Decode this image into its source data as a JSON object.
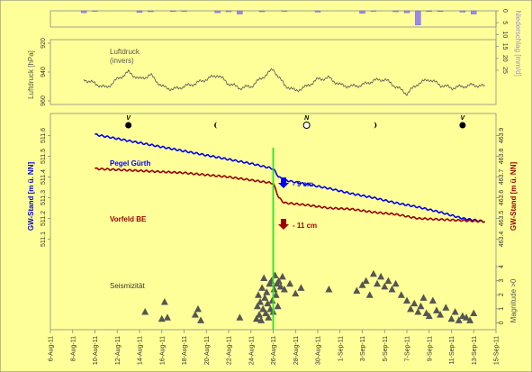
{
  "colors": {
    "background": "#ffff99",
    "frame": "#8a8a8a",
    "precip": "#9a8aea",
    "pressure": "#555555",
    "guerth": "#0000ee",
    "vorfeld": "#990000",
    "event": "#33dd33",
    "seis": "#555555"
  },
  "chart_data": [
    {
      "type": "bar",
      "name": "precipitation",
      "ylabel": "Niederschlag [mm/d]",
      "yticks": [
        "0",
        "5",
        "10",
        "15",
        "20",
        "25"
      ],
      "ylim": [
        0,
        25
      ],
      "inverted": true,
      "x": [
        "2011-08-09",
        "2011-08-10",
        "2011-08-14",
        "2011-08-15",
        "2011-08-17",
        "2011-08-18",
        "2011-08-21",
        "2011-08-22",
        "2011-08-23",
        "2011-08-25",
        "2011-08-27",
        "2011-08-30",
        "2011-09-03",
        "2011-09-04",
        "2011-09-06",
        "2011-09-07",
        "2011-09-08",
        "2011-09-09",
        "2011-09-10",
        "2011-09-12",
        "2011-09-13"
      ],
      "values": [
        3,
        0.5,
        2.5,
        1.5,
        1,
        0.7,
        3,
        1.5,
        5,
        1.5,
        0.5,
        2,
        4,
        0.5,
        1.5,
        3,
        22,
        1,
        1.2,
        2,
        5
      ]
    },
    {
      "type": "line",
      "name": "Luftdruck (invers)",
      "label": "Luftdruck\n(invers)",
      "ylabel": "Luftdruck [hPa]",
      "yticks": [
        "920",
        "940",
        "960"
      ],
      "note": "approximate trace",
      "x": [
        "2011-08-09",
        "2011-08-10",
        "2011-08-11",
        "2011-08-12",
        "2011-08-13",
        "2011-08-14",
        "2011-08-15",
        "2011-08-16",
        "2011-08-17",
        "2011-08-18",
        "2011-08-19",
        "2011-08-20",
        "2011-08-21",
        "2011-08-22",
        "2011-08-23",
        "2011-08-24",
        "2011-08-25",
        "2011-08-26",
        "2011-08-27",
        "2011-08-28",
        "2011-08-29",
        "2011-08-30",
        "2011-08-31",
        "2011-09-01",
        "2011-09-02",
        "2011-09-03",
        "2011-09-04",
        "2011-09-05",
        "2011-09-06",
        "2011-09-07",
        "2011-09-08",
        "2011-09-09",
        "2011-09-10",
        "2011-09-11",
        "2011-09-12",
        "2011-09-13",
        "2011-09-14"
      ],
      "values": [
        945,
        948,
        951,
        945,
        940,
        945,
        942,
        950,
        952,
        950,
        948,
        945,
        942,
        948,
        951,
        950,
        944,
        938,
        949,
        953,
        950,
        945,
        944,
        949,
        950,
        949,
        946,
        945,
        950,
        955,
        948,
        945,
        949,
        951,
        950,
        949,
        950
      ]
    },
    {
      "type": "line",
      "name": "Pegel Gürth",
      "ylabel": "GW-Stand  [m ü. NN]",
      "yticks": [
        "511.1",
        "511.2",
        "511.3",
        "511.4",
        "511.5",
        "511.6"
      ],
      "ylim": [
        511.05,
        511.65
      ],
      "x": [
        "2011-08-10",
        "2011-08-12",
        "2011-08-14",
        "2011-08-16",
        "2011-08-18",
        "2011-08-20",
        "2011-08-22",
        "2011-08-24",
        "2011-08-26",
        "2011-08-26T12",
        "2011-08-27",
        "2011-08-29",
        "2011-08-31",
        "2011-09-02",
        "2011-09-04",
        "2011-09-06",
        "2011-09-08",
        "2011-09-10",
        "2011-09-12",
        "2011-09-14"
      ],
      "values": [
        511.605,
        511.585,
        511.565,
        511.545,
        511.525,
        511.505,
        511.485,
        511.465,
        511.44,
        511.4,
        511.385,
        511.365,
        511.345,
        511.32,
        511.3,
        511.275,
        511.255,
        511.23,
        511.2,
        511.185
      ],
      "annotation": "- 9 cm"
    },
    {
      "type": "line",
      "name": "Vorfeld BE",
      "ylabel": "GW-Stand  [m ü. NN]",
      "yticks": [
        "463.4",
        "463.5",
        "463.6",
        "463.7",
        "463.8",
        "463.9"
      ],
      "ylim": [
        463.35,
        463.95
      ],
      "x": [
        "2011-08-10",
        "2011-08-12",
        "2011-08-14",
        "2011-08-16",
        "2011-08-18",
        "2011-08-20",
        "2011-08-22",
        "2011-08-24",
        "2011-08-26",
        "2011-08-26T12",
        "2011-08-27",
        "2011-08-29",
        "2011-08-31",
        "2011-09-02",
        "2011-09-04",
        "2011-09-06",
        "2011-09-08",
        "2011-09-10",
        "2011-09-12",
        "2011-09-14"
      ],
      "values": [
        463.74,
        463.735,
        463.73,
        463.725,
        463.72,
        463.71,
        463.7,
        463.685,
        463.67,
        463.6,
        463.575,
        463.565,
        463.55,
        463.545,
        463.53,
        463.52,
        463.5,
        463.495,
        463.49,
        463.485
      ],
      "annotation": "- 11 cm"
    },
    {
      "type": "scatter",
      "name": "Seismizität",
      "ylabel": "Magnitude >0",
      "yticks": [
        "0",
        "1",
        "2",
        "3",
        "4"
      ],
      "ylim": [
        -0.1,
        4
      ],
      "x": [
        "2011-08-14T12",
        "2011-08-16",
        "2011-08-16T06",
        "2011-08-16T12",
        "2011-08-19",
        "2011-08-19T06",
        "2011-08-19T12",
        "2011-08-23",
        "2011-08-24T12",
        "2011-08-24T14",
        "2011-08-24T16",
        "2011-08-24T18",
        "2011-08-24T20",
        "2011-08-24T22",
        "2011-08-25",
        "2011-08-25T02",
        "2011-08-25T04",
        "2011-08-25T06",
        "2011-08-25T08",
        "2011-08-25T10",
        "2011-08-25T12",
        "2011-08-25T14",
        "2011-08-25T16",
        "2011-08-25T18",
        "2011-08-25T20",
        "2011-08-25T22",
        "2011-08-26",
        "2011-08-26T02",
        "2011-08-26T04",
        "2011-08-26T06",
        "2011-08-26T08",
        "2011-08-26T10",
        "2011-08-26T12",
        "2011-08-26T16",
        "2011-08-26T20",
        "2011-08-27",
        "2011-08-27T12",
        "2011-08-28",
        "2011-08-28T12",
        "2011-08-31",
        "2011-09-02T12",
        "2011-09-03",
        "2011-09-03T08",
        "2011-09-03T16",
        "2011-09-04",
        "2011-09-04T08",
        "2011-09-04T16",
        "2011-09-05",
        "2011-09-05T08",
        "2011-09-05T16",
        "2011-09-06",
        "2011-09-06T12",
        "2011-09-07",
        "2011-09-07T08",
        "2011-09-07T16",
        "2011-09-08",
        "2011-09-08T06",
        "2011-09-08T12",
        "2011-09-08T18",
        "2011-09-09",
        "2011-09-09T08",
        "2011-09-09T16",
        "2011-09-10",
        "2011-09-10T12",
        "2011-09-11",
        "2011-09-11T08",
        "2011-09-11T16",
        "2011-09-12",
        "2011-09-12T08",
        "2011-09-12T16",
        "2011-09-13"
      ],
      "values": [
        0.8,
        0.3,
        1.5,
        0.4,
        0.6,
        1.0,
        0.2,
        0.4,
        0.3,
        1.2,
        2.0,
        0.6,
        1.5,
        0.2,
        2.5,
        1.0,
        3.2,
        1.8,
        0.7,
        2.2,
        1.4,
        0.4,
        2.8,
        1.0,
        3.0,
        1.6,
        0.8,
        2.4,
        3.4,
        2.0,
        2.8,
        1.2,
        3.0,
        2.6,
        3.3,
        2.4,
        2.8,
        2.1,
        2.5,
        2.4,
        2.3,
        2.7,
        3.0,
        2.0,
        3.5,
        2.8,
        3.3,
        2.6,
        3.0,
        2.4,
        2.8,
        2.0,
        1.6,
        1.0,
        1.4,
        0.8,
        1.2,
        1.8,
        0.7,
        0.5,
        1.6,
        0.9,
        0.6,
        1.1,
        0.3,
        0.8,
        0.2,
        0.5,
        0.4,
        0.2,
        0.7
      ]
    }
  ],
  "moon_phases": [
    {
      "date": "2011-08-13",
      "phase": "full",
      "label": "V"
    },
    {
      "date": "2011-08-21",
      "phase": "last-quarter",
      "label": ""
    },
    {
      "date": "2011-08-29",
      "phase": "new",
      "label": "N"
    },
    {
      "date": "2011-09-04",
      "phase": "first-quarter",
      "label": ""
    },
    {
      "date": "2011-09-12",
      "phase": "full",
      "label": "V"
    }
  ],
  "x_axis": {
    "ticks": [
      "6-Aug-11",
      "8-Aug-11",
      "10-Aug-11",
      "12-Aug-11",
      "14-Aug-11",
      "16-Aug-11",
      "18-Aug-11",
      "20-Aug-11",
      "22-Aug-11",
      "24-Aug-11",
      "26-Aug-11",
      "28-Aug-11",
      "30-Aug-11",
      "1-Sep-11",
      "3-Sep-11",
      "5-Sep-11",
      "7-Sep-11",
      "9-Sep-11",
      "11-Sep-11",
      "13-Sep-11",
      "15-Sep-11"
    ],
    "range": [
      "2011-08-06",
      "2011-09-15"
    ]
  },
  "event_date": "2011-08-26"
}
